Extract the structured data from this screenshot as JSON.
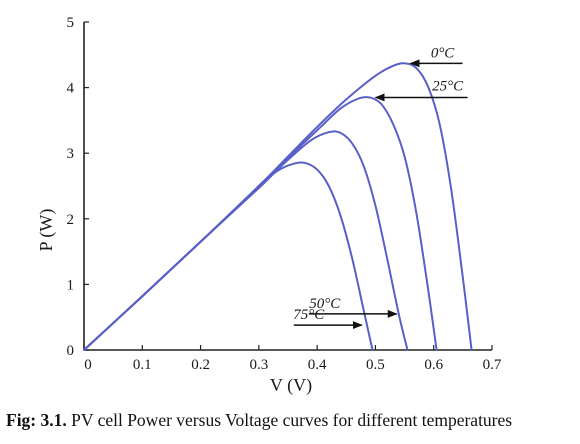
{
  "chart_data": {
    "type": "line",
    "title": "",
    "xlabel": "V (V)",
    "ylabel": "P (W)",
    "xlim": [
      0,
      0.7
    ],
    "ylim": [
      0,
      5
    ],
    "xticks": [
      0,
      0.1,
      0.2,
      0.3,
      0.4,
      0.5,
      0.6,
      0.7
    ],
    "xtick_labels": [
      "0",
      "0.1",
      "0.2",
      "0.3",
      "0.4",
      "0.5",
      "0.6",
      "0.7"
    ],
    "yticks": [
      0,
      1,
      2,
      3,
      4,
      5
    ],
    "ytick_labels": [
      "0",
      "1",
      "2",
      "3",
      "4",
      "5"
    ],
    "grid": false,
    "line_color": "#5a5fc8",
    "series": [
      {
        "name": "0°C",
        "x": [
          0,
          0.1,
          0.2,
          0.3,
          0.35,
          0.4,
          0.45,
          0.5,
          0.53,
          0.55,
          0.57,
          0.59,
          0.61,
          0.63,
          0.65,
          0.665
        ],
        "y": [
          0,
          0.82,
          1.65,
          2.5,
          2.95,
          3.4,
          3.82,
          4.18,
          4.33,
          4.37,
          4.3,
          4.02,
          3.45,
          2.45,
          1.1,
          0
        ]
      },
      {
        "name": "25°C",
        "x": [
          0,
          0.1,
          0.2,
          0.3,
          0.35,
          0.4,
          0.44,
          0.47,
          0.49,
          0.51,
          0.53,
          0.55,
          0.57,
          0.59,
          0.605
        ],
        "y": [
          0,
          0.82,
          1.65,
          2.5,
          2.93,
          3.35,
          3.68,
          3.83,
          3.85,
          3.75,
          3.45,
          2.95,
          2.1,
          0.95,
          0
        ]
      },
      {
        "name": "50°C",
        "x": [
          0,
          0.1,
          0.2,
          0.3,
          0.35,
          0.39,
          0.42,
          0.44,
          0.46,
          0.48,
          0.5,
          0.52,
          0.54,
          0.555
        ],
        "y": [
          0,
          0.82,
          1.65,
          2.48,
          2.9,
          3.2,
          3.32,
          3.31,
          3.15,
          2.8,
          2.2,
          1.4,
          0.55,
          0
        ]
      },
      {
        "name": "75°C",
        "x": [
          0,
          0.1,
          0.2,
          0.3,
          0.33,
          0.36,
          0.38,
          0.4,
          0.42,
          0.44,
          0.46,
          0.48,
          0.495
        ],
        "y": [
          0,
          0.82,
          1.65,
          2.47,
          2.72,
          2.84,
          2.85,
          2.75,
          2.5,
          2.05,
          1.4,
          0.6,
          0
        ]
      }
    ],
    "annotations": [
      {
        "text": "0°C",
        "points_to": [
          0.55,
          4.37
        ]
      },
      {
        "text": "25°C",
        "points_to": [
          0.49,
          3.85
        ]
      },
      {
        "text": "50°C",
        "points_to": [
          0.54,
          0.55
        ]
      },
      {
        "text": "75°C",
        "points_to": [
          0.48,
          0.38
        ]
      }
    ]
  },
  "caption": {
    "prefix": "Fig: 3.1.",
    "text": " PV cell Power versus Voltage curves for different temperatures"
  }
}
